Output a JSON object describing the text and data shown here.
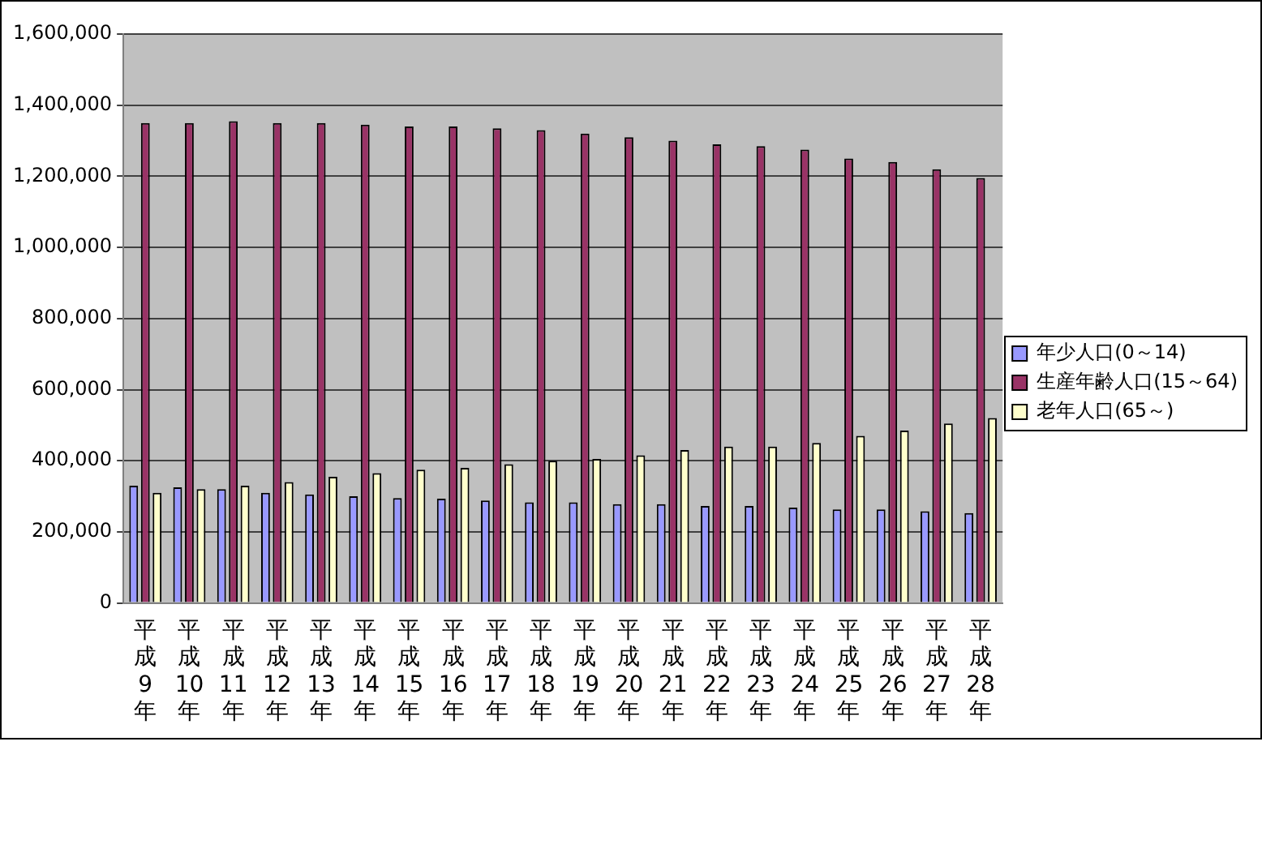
{
  "chart_data": {
    "type": "bar",
    "categories": [
      "平成9年",
      "平成10年",
      "平成11年",
      "平成12年",
      "平成13年",
      "平成14年",
      "平成15年",
      "平成16年",
      "平成17年",
      "平成18年",
      "平成19年",
      "平成20年",
      "平成21年",
      "平成22年",
      "平成23年",
      "平成24年",
      "平成25年",
      "平成26年",
      "平成27年",
      "平成28年"
    ],
    "series": [
      {
        "name": "年少人口(0～14)",
        "color": "#9999ff",
        "values": [
          330000,
          325000,
          320000,
          310000,
          305000,
          300000,
          295000,
          293000,
          288000,
          283000,
          283000,
          278000,
          278000,
          273000,
          273000,
          268000,
          263000,
          263000,
          258000,
          253000
        ]
      },
      {
        "name": "生産年齢人口(15～64)",
        "color": "#993366",
        "values": [
          1350000,
          1350000,
          1355000,
          1350000,
          1350000,
          1345000,
          1340000,
          1340000,
          1335000,
          1330000,
          1320000,
          1310000,
          1300000,
          1290000,
          1285000,
          1275000,
          1250000,
          1240000,
          1220000,
          1195000
        ]
      },
      {
        "name": "老年人口(65～)",
        "color": "#ffffcc",
        "values": [
          310000,
          320000,
          330000,
          340000,
          355000,
          365000,
          375000,
          380000,
          390000,
          400000,
          405000,
          415000,
          430000,
          440000,
          440000,
          450000,
          470000,
          485000,
          505000,
          520000
        ]
      }
    ],
    "ylim": [
      0,
      1600000
    ],
    "yticks": [
      0,
      {
        "value": 200000,
        "label": "200,000"
      },
      {
        "value": 400000,
        "label": "400,000"
      },
      {
        "value": 600000,
        "label": "600,000"
      },
      {
        "value": 800000,
        "label": "800,000"
      },
      {
        "value": 1000000,
        "label": "1,000,000"
      },
      {
        "value": 1200000,
        "label": "1,200,000"
      },
      {
        "value": 1400000,
        "label": "1,400,000"
      },
      {
        "value": 1600000,
        "label": "1,600,000"
      }
    ],
    "grid": "y",
    "legend": "right"
  }
}
